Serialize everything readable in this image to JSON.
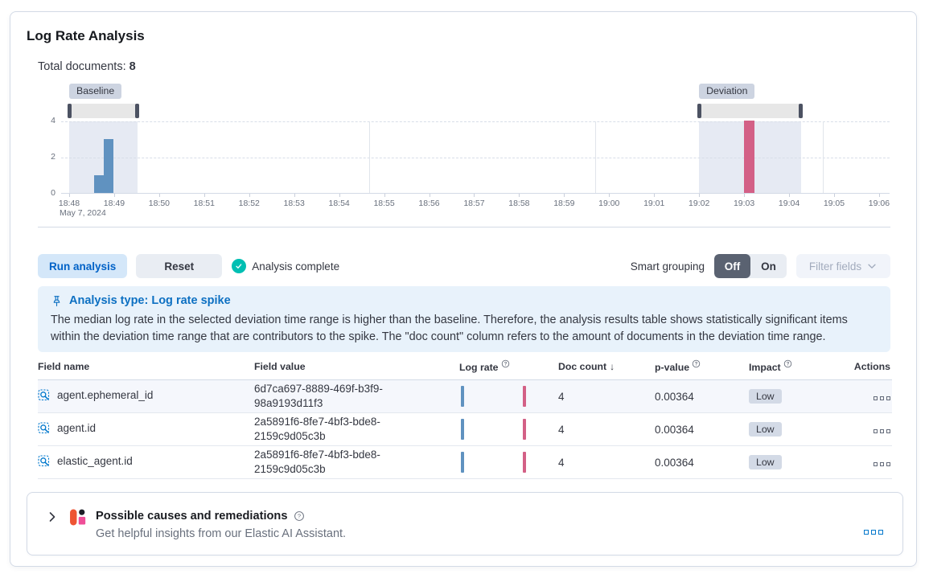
{
  "title": "Log Rate Analysis",
  "total_documents": {
    "label": "Total documents:",
    "value": "8"
  },
  "chart_data": {
    "type": "bar",
    "title": "Document count histogram with baseline and deviation brushes",
    "x_axis": {
      "labels": [
        "18:48",
        "18:49",
        "18:50",
        "18:51",
        "18:52",
        "18:53",
        "18:54",
        "18:55",
        "18:56",
        "18:57",
        "18:58",
        "18:59",
        "19:00",
        "19:01",
        "19:02",
        "19:03",
        "19:04",
        "19:05",
        "19:06"
      ],
      "date_label": "May 7, 2024",
      "seconds_per_label": 60
    },
    "y_axis": {
      "ticks": [
        0,
        2,
        4
      ],
      "max": 4
    },
    "baseline": {
      "label": "Baseline",
      "start_s": 0,
      "end_s": 91
    },
    "deviation": {
      "label": "Deviation",
      "start_s": 840,
      "end_s": 976
    },
    "series": [
      {
        "name": "baseline doc count",
        "color": "#6092c0",
        "bars": [
          {
            "start_s": 33,
            "end_s": 46,
            "value": 1
          },
          {
            "start_s": 46,
            "end_s": 59,
            "value": 3
          }
        ]
      },
      {
        "name": "deviation doc count",
        "color": "#d36086",
        "bars": [
          {
            "start_s": 900,
            "end_s": 914,
            "value": 4
          }
        ]
      }
    ],
    "vertical_gridlines_s": [
      400,
      702,
      1005
    ],
    "colors": {
      "region": "#e6eaf3",
      "brush_track": "#e7e7e7",
      "brush_handle": "#4c5262",
      "badge_bg": "#cdd4e1",
      "grid": "#d8dee8",
      "axis": "#d3dae6",
      "tick_text": "#69707d"
    }
  },
  "toolbar": {
    "run_button": "Run analysis",
    "reset_button": "Reset",
    "status_text": "Analysis complete",
    "smart_grouping_label": "Smart grouping",
    "off_label": "Off",
    "on_label": "On",
    "filter_fields_label": "Filter fields"
  },
  "callout": {
    "title": "Analysis type: Log rate spike",
    "body": "The median log rate in the selected deviation time range is higher than the baseline. Therefore, the analysis results table shows statistically significant items within the deviation time range that are contributors to the spike. The \"doc count\" column refers to the amount of documents in the deviation time range."
  },
  "table": {
    "columns": [
      "Field name",
      "Field value",
      "Log rate",
      "Doc count",
      "p-value",
      "Impact",
      "Actions"
    ],
    "info_columns": [
      "Log rate",
      "p-value",
      "Impact"
    ],
    "sorted_column": "Doc count",
    "sort_direction": "desc",
    "rows": [
      {
        "field_name": "agent.ephemeral_id",
        "field_value": "6d7ca697-8889-469f-b3f9-98a9193d11f3",
        "doc_count": "4",
        "p_value": "0.00364",
        "impact": "Low",
        "highlighted": true
      },
      {
        "field_name": "agent.id",
        "field_value": "2a5891f6-8fe7-4bf3-bde8-2159c9d05c3b",
        "doc_count": "4",
        "p_value": "0.00364",
        "impact": "Low",
        "highlighted": false
      },
      {
        "field_name": "elastic_agent.id",
        "field_value": "2a5891f6-8fe7-4bf3-bde8-2159c9d05c3b",
        "doc_count": "4",
        "p_value": "0.00364",
        "impact": "Low",
        "highlighted": false
      }
    ]
  },
  "footer": {
    "title": "Possible causes and remediations",
    "subtitle": "Get helpful insights from our Elastic AI Assistant."
  },
  "icons": {
    "status": "check-in-circle",
    "callout": "pin-icon",
    "field": "field-search-icon",
    "row_actions": "boxes-horizontal-icon",
    "accordion": "chevron-right-icon",
    "assistant": "elastic-ai-assistant-logo",
    "filter": "chevron-down-icon",
    "help": "question-in-circle-icon"
  }
}
